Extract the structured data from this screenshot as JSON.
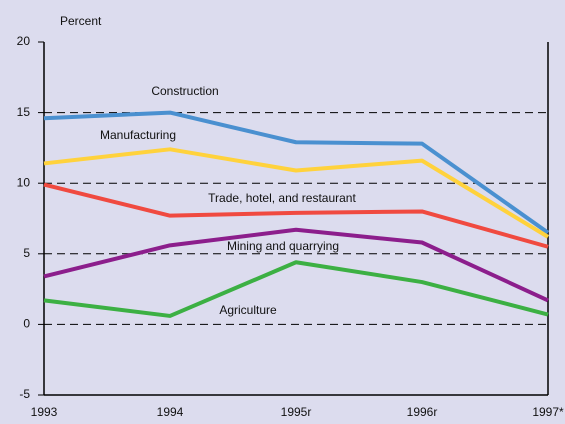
{
  "chart_data": {
    "type": "line",
    "y_label": "Percent",
    "categories": [
      "1993",
      "1994",
      "1995r",
      "1996r",
      "1997*"
    ],
    "series": [
      {
        "name": "Construction",
        "color": "#4a90d0",
        "values": [
          14.6,
          15.0,
          12.9,
          12.8,
          6.5
        ]
      },
      {
        "name": "Manufacturing",
        "color": "#ffd23c",
        "values": [
          11.4,
          12.4,
          10.9,
          11.6,
          6.2
        ]
      },
      {
        "name": "Trade, hotel, and restaurant",
        "color": "#f04a40",
        "values": [
          9.9,
          7.7,
          7.9,
          8.0,
          5.5
        ]
      },
      {
        "name": "Mining and quarrying",
        "color": "#8c1e8c",
        "values": [
          3.4,
          5.6,
          6.7,
          5.8,
          1.7
        ]
      },
      {
        "name": "Agriculture",
        "color": "#3cb043",
        "values": [
          1.7,
          0.6,
          4.4,
          3.0,
          0.7
        ]
      }
    ],
    "ylim": [
      -5,
      20
    ],
    "yticks": [
      -5,
      0,
      5,
      10,
      15,
      20
    ],
    "grid": true
  }
}
